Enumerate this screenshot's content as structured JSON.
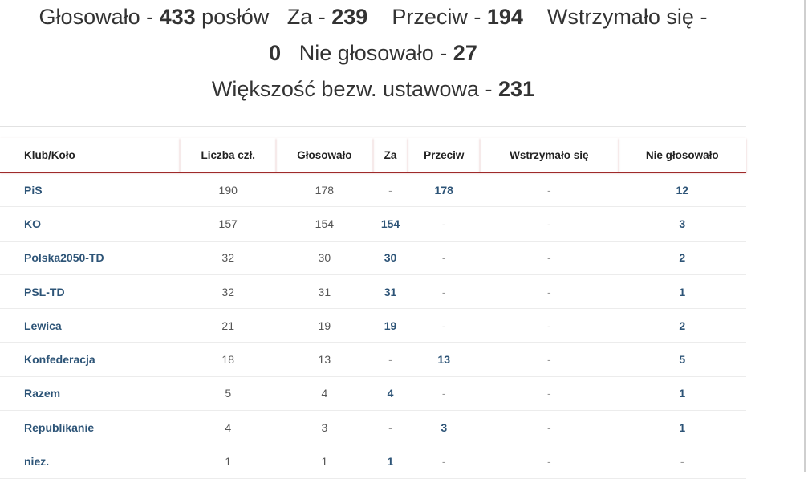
{
  "summary": {
    "voted_label": "Głosowało - ",
    "voted": "433",
    "voted_suffix": " posłów",
    "for_label": "Za - ",
    "for": "239",
    "against_label": "Przeciw - ",
    "against": "194",
    "abstained_label": "Wstrzymało się -",
    "abstained": "0",
    "not_voted_label": "Nie głosowało - ",
    "not_voted": "27",
    "majority_label": "Większość bezw. ustawowa - ",
    "majority": "231"
  },
  "table": {
    "headers": [
      "Klub/Koło",
      "Liczba czł.",
      "Głosowało",
      "Za",
      "Przeciw",
      "Wstrzymało się",
      "Nie głosowało"
    ],
    "rows": [
      [
        "PiS",
        "190",
        "178",
        "-",
        "178",
        "-",
        "12"
      ],
      [
        "KO",
        "157",
        "154",
        "154",
        "-",
        "-",
        "3"
      ],
      [
        "Polska2050-TD",
        "32",
        "30",
        "30",
        "-",
        "-",
        "2"
      ],
      [
        "PSL-TD",
        "32",
        "31",
        "31",
        "-",
        "-",
        "1"
      ],
      [
        "Lewica",
        "21",
        "19",
        "19",
        "-",
        "-",
        "2"
      ],
      [
        "Konfederacja",
        "18",
        "13",
        "-",
        "13",
        "-",
        "5"
      ],
      [
        "Razem",
        "5",
        "4",
        "4",
        "-",
        "-",
        "1"
      ],
      [
        "Republikanie",
        "4",
        "3",
        "-",
        "3",
        "-",
        "1"
      ],
      [
        "niez.",
        "1",
        "1",
        "1",
        "-",
        "-",
        "-"
      ]
    ]
  },
  "colors": {
    "accent": "#9e2a2a",
    "link": "#2d5477"
  }
}
